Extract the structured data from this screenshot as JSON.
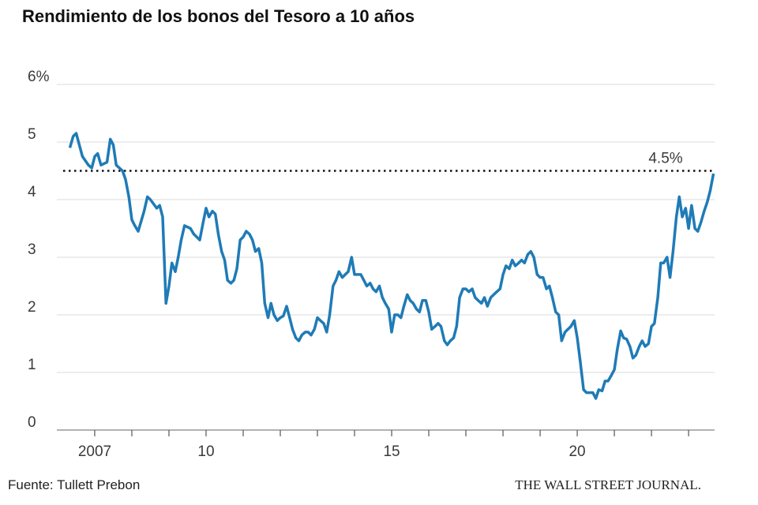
{
  "chart_data": {
    "type": "line",
    "title": "Rendimiento de los bonos del Tesoro a 10 años",
    "source": "Fuente: Tullett Prebon",
    "publisher": "THE WALL STREET JOURNAL.",
    "color": "#1f7bb6",
    "grid": true,
    "xlim": [
      2006.15,
      2023.7
    ],
    "ylim": [
      0,
      6
    ],
    "yticks": [
      0,
      1,
      2,
      3,
      4,
      {
        "value": 6,
        "label": "6%"
      },
      5
    ],
    "xticks": [
      {
        "value": 2007,
        "label": "2007"
      },
      {
        "value": 2010,
        "label": "10"
      },
      {
        "value": 2015,
        "label": "15"
      },
      {
        "value": 2020,
        "label": "20"
      }
    ],
    "xminor_ticks": [
      2007,
      2008,
      2009,
      2010,
      2011,
      2012,
      2013,
      2014,
      2015,
      2016,
      2017,
      2018,
      2019,
      2020,
      2021,
      2022,
      2023
    ],
    "reference_line": {
      "value": 4.5,
      "label": "4.5%"
    },
    "x": [
      2006.33,
      2006.42,
      2006.5,
      2006.67,
      2006.83,
      2006.92,
      2007.0,
      2007.08,
      2007.17,
      2007.33,
      2007.42,
      2007.5,
      2007.58,
      2007.75,
      2007.83,
      2007.92,
      2008.0,
      2008.08,
      2008.17,
      2008.33,
      2008.42,
      2008.5,
      2008.67,
      2008.75,
      2008.83,
      2008.92,
      2009.0,
      2009.08,
      2009.17,
      2009.25,
      2009.33,
      2009.42,
      2009.58,
      2009.67,
      2009.75,
      2009.83,
      2009.92,
      2010.0,
      2010.08,
      2010.17,
      2010.25,
      2010.33,
      2010.42,
      2010.5,
      2010.58,
      2010.67,
      2010.75,
      2010.83,
      2010.92,
      2011.0,
      2011.08,
      2011.17,
      2011.25,
      2011.33,
      2011.42,
      2011.5,
      2011.58,
      2011.67,
      2011.75,
      2011.83,
      2011.92,
      2012.0,
      2012.08,
      2012.17,
      2012.25,
      2012.33,
      2012.42,
      2012.5,
      2012.58,
      2012.67,
      2012.75,
      2012.83,
      2012.92,
      2013.0,
      2013.08,
      2013.17,
      2013.25,
      2013.33,
      2013.42,
      2013.5,
      2013.58,
      2013.67,
      2013.75,
      2013.83,
      2013.92,
      2014.0,
      2014.08,
      2014.17,
      2014.25,
      2014.33,
      2014.42,
      2014.5,
      2014.58,
      2014.67,
      2014.75,
      2014.83,
      2014.92,
      2015.0,
      2015.08,
      2015.17,
      2015.25,
      2015.33,
      2015.42,
      2015.5,
      2015.58,
      2015.67,
      2015.75,
      2015.83,
      2015.92,
      2016.0,
      2016.08,
      2016.17,
      2016.25,
      2016.33,
      2016.42,
      2016.5,
      2016.58,
      2016.67,
      2016.75,
      2016.83,
      2016.92,
      2017.0,
      2017.08,
      2017.17,
      2017.25,
      2017.33,
      2017.42,
      2017.5,
      2017.58,
      2017.67,
      2017.75,
      2017.83,
      2017.92,
      2018.0,
      2018.08,
      2018.17,
      2018.25,
      2018.33,
      2018.42,
      2018.5,
      2018.58,
      2018.67,
      2018.75,
      2018.83,
      2018.92,
      2019.0,
      2019.08,
      2019.17,
      2019.25,
      2019.33,
      2019.42,
      2019.5,
      2019.58,
      2019.67,
      2019.75,
      2019.83,
      2019.92,
      2020.0,
      2020.08,
      2020.17,
      2020.25,
      2020.33,
      2020.42,
      2020.5,
      2020.58,
      2020.67,
      2020.75,
      2020.83,
      2020.92,
      2021.0,
      2021.08,
      2021.17,
      2021.25,
      2021.33,
      2021.42,
      2021.5,
      2021.58,
      2021.67,
      2021.75,
      2021.83,
      2021.92,
      2022.0,
      2022.08,
      2022.17,
      2022.25,
      2022.33,
      2022.42,
      2022.5,
      2022.58,
      2022.67,
      2022.75,
      2022.83,
      2022.92,
      2023.0,
      2023.08,
      2023.17,
      2023.25,
      2023.33,
      2023.42,
      2023.5,
      2023.58,
      2023.67
    ],
    "values": [
      4.9,
      5.1,
      5.15,
      4.75,
      4.6,
      4.55,
      4.75,
      4.8,
      4.6,
      4.65,
      5.05,
      4.95,
      4.6,
      4.5,
      4.35,
      4.05,
      3.65,
      3.55,
      3.45,
      3.8,
      4.05,
      4.0,
      3.85,
      3.9,
      3.7,
      2.2,
      2.5,
      2.9,
      2.75,
      3.0,
      3.3,
      3.55,
      3.5,
      3.4,
      3.35,
      3.3,
      3.6,
      3.85,
      3.7,
      3.8,
      3.75,
      3.4,
      3.1,
      2.95,
      2.6,
      2.55,
      2.6,
      2.8,
      3.3,
      3.35,
      3.45,
      3.4,
      3.3,
      3.1,
      3.15,
      2.9,
      2.2,
      1.95,
      2.2,
      2.0,
      1.9,
      1.95,
      1.98,
      2.15,
      1.95,
      1.75,
      1.6,
      1.55,
      1.65,
      1.7,
      1.7,
      1.65,
      1.75,
      1.95,
      1.9,
      1.85,
      1.7,
      2.0,
      2.5,
      2.6,
      2.75,
      2.65,
      2.7,
      2.75,
      3.0,
      2.7,
      2.7,
      2.7,
      2.6,
      2.5,
      2.55,
      2.45,
      2.4,
      2.5,
      2.3,
      2.2,
      2.1,
      1.7,
      2.0,
      2.0,
      1.95,
      2.15,
      2.35,
      2.25,
      2.2,
      2.1,
      2.05,
      2.25,
      2.25,
      2.05,
      1.75,
      1.8,
      1.85,
      1.8,
      1.55,
      1.48,
      1.55,
      1.6,
      1.8,
      2.3,
      2.45,
      2.45,
      2.4,
      2.45,
      2.3,
      2.25,
      2.2,
      2.3,
      2.15,
      2.3,
      2.35,
      2.4,
      2.45,
      2.7,
      2.85,
      2.8,
      2.95,
      2.85,
      2.9,
      2.95,
      2.9,
      3.05,
      3.1,
      3.0,
      2.7,
      2.65,
      2.65,
      2.45,
      2.5,
      2.3,
      2.05,
      2.0,
      1.55,
      1.7,
      1.75,
      1.8,
      1.9,
      1.6,
      1.2,
      0.7,
      0.65,
      0.65,
      0.65,
      0.55,
      0.7,
      0.68,
      0.85,
      0.85,
      0.95,
      1.05,
      1.4,
      1.72,
      1.6,
      1.58,
      1.45,
      1.25,
      1.3,
      1.45,
      1.55,
      1.45,
      1.5,
      1.8,
      1.85,
      2.3,
      2.9,
      2.9,
      3.0,
      2.65,
      3.1,
      3.7,
      4.05,
      3.7,
      3.85,
      3.5,
      3.9,
      3.5,
      3.45,
      3.6,
      3.8,
      3.95,
      4.15,
      4.45
    ]
  }
}
